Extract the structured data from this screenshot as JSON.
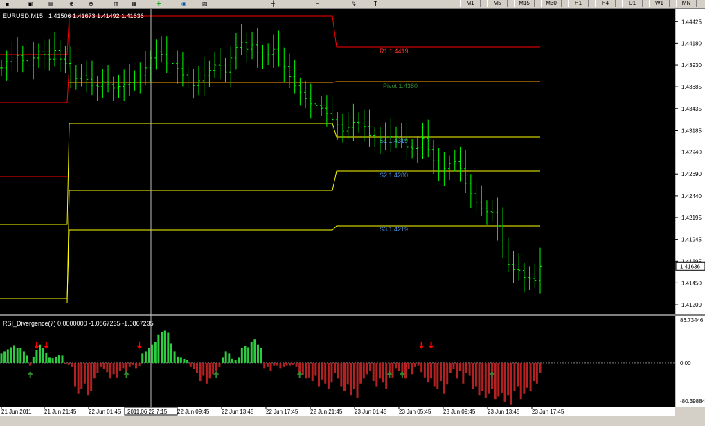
{
  "toolbar": {
    "timeframes": [
      "M1",
      "M5",
      "M15",
      "M30",
      "H1",
      "H4",
      "D1",
      "W1",
      "MN"
    ],
    "icons": [
      "new-chart-icon",
      "profiles-icon",
      "market-watch-icon",
      "navigator-icon",
      "terminal-icon",
      "zoom-in-icon",
      "zoom-out-icon",
      "tile-icon",
      "add-indicator-icon",
      "periods-icon",
      "template-icon",
      "line-icon",
      "cross-icon",
      "text-icon",
      "arrow-icon"
    ]
  },
  "colors": {
    "background": "#000000",
    "bar": "#00ff00",
    "r1": "#ff0000",
    "pivot": "#ffa500",
    "support": "#ffff00",
    "rsi_up": "#2ecc40",
    "rsi_down": "#b22222",
    "label_r1": "#ff3b30",
    "label_pivot": "#2e8b2e",
    "label_support": "#4a90e2"
  },
  "chart_data": [
    {
      "type": "candlestick",
      "symbol_label": "EURUSD,M15",
      "ohlc_label": "1.41506 1.41673 1.41492 1.41636",
      "current_price": "1.41636",
      "y_ticks": [
        "1.44425",
        "1.44180",
        "1.43930",
        "1.43685",
        "1.43435",
        "1.43185",
        "1.42940",
        "1.42690",
        "1.42440",
        "1.42195",
        "1.41945",
        "1.41695",
        "1.41450",
        "1.41200"
      ],
      "ylim": [
        1.4109,
        1.4453
      ],
      "x_ticks": [
        "21 Jun 2011",
        "21 Jun 21:45",
        "22 Jun 01:45",
        "22 Jun 05:45",
        "22 Jun 09:45",
        "22 Jun 13:45",
        "22 Jun 17:45",
        "22 Jun 21:45",
        "23 Jun 01:45",
        "23 Jun 05:45",
        "23 Jun 09:45",
        "23 Jun 13:45",
        "23 Jun 17:45"
      ],
      "crosshair_label": "2011.06.22 7:15",
      "levels": [
        {
          "name": "R1",
          "label": "R1 1.4419",
          "value": 1.4419
        },
        {
          "name": "Pivot",
          "label": "Pivot 1.4380",
          "value": 1.438
        },
        {
          "name": "S1",
          "label": "S1 1.4319",
          "value": 1.4319
        },
        {
          "name": "S2",
          "label": "S2 1.4280",
          "value": 1.428
        },
        {
          "name": "S3",
          "label": "S3 1.4219",
          "value": 1.4219
        }
      ],
      "close_path": [
        1.439,
        1.4397,
        1.4402,
        1.4404,
        1.4398,
        1.4392,
        1.4401,
        1.4409,
        1.4405,
        1.44,
        1.441,
        1.44,
        1.4395,
        1.4384,
        1.4378,
        1.4381,
        1.4377,
        1.437,
        1.4369,
        1.4374,
        1.4371,
        1.4367,
        1.4369,
        1.4371,
        1.4373,
        1.4376,
        1.4381,
        1.439,
        1.4401,
        1.4409,
        1.4405,
        1.4399,
        1.4395,
        1.4389,
        1.4382,
        1.4376,
        1.437,
        1.4375,
        1.4381,
        1.4387,
        1.4393,
        1.4392,
        1.4385,
        1.4401,
        1.4413,
        1.4419,
        1.4411,
        1.4416,
        1.4407,
        1.4402,
        1.4405,
        1.4411,
        1.4402,
        1.4391,
        1.438,
        1.437,
        1.4362,
        1.4355,
        1.4349,
        1.4347,
        1.4344,
        1.4338,
        1.4331,
        1.4325,
        1.4318,
        1.4322,
        1.4328,
        1.4327,
        1.4323,
        1.4313,
        1.4309,
        1.4307,
        1.4311,
        1.4312,
        1.4312,
        1.4308,
        1.43,
        1.4298,
        1.4299,
        1.431,
        1.4297,
        1.4284,
        1.4272,
        1.4275,
        1.4281,
        1.4283,
        1.4275,
        1.4258,
        1.4247,
        1.4237,
        1.423,
        1.4226,
        1.4225,
        1.421,
        1.4186,
        1.4166,
        1.416,
        1.4159,
        1.4151,
        1.415,
        1.4148,
        1.4164
      ],
      "right_edge_value": 1.4164
    },
    {
      "type": "histogram",
      "indicator_label": "RSI_Divergence(7) 0.0000000 -1.0867235 -1.0867235",
      "y_ticks": [
        "86.73446",
        "0.00",
        "-80.39884"
      ],
      "ylim": [
        -80.39884,
        86.73446
      ],
      "values": [
        18,
        22,
        26,
        30,
        34,
        29,
        28,
        22,
        14,
        -5,
        12,
        25,
        35,
        28,
        20,
        10,
        9,
        12,
        15,
        14,
        -2,
        -4,
        -8,
        -45,
        -60,
        -50,
        -40,
        -62,
        -55,
        -30,
        -20,
        -8,
        -12,
        -18,
        -30,
        -22,
        -28,
        -15,
        -10,
        -20,
        -8,
        -4,
        -10,
        -6,
        18,
        22,
        28,
        35,
        40,
        55,
        60,
        62,
        58,
        38,
        22,
        12,
        10,
        8,
        6,
        -8,
        -12,
        -20,
        -35,
        -25,
        -40,
        -30,
        -22,
        -15,
        -8,
        10,
        22,
        18,
        8,
        6,
        10,
        28,
        32,
        30,
        40,
        45,
        35,
        28,
        -10,
        -8,
        -15,
        -5,
        -5,
        -10,
        -8,
        -5,
        -5,
        -4,
        -8,
        -20,
        -24,
        -30,
        -28,
        -35,
        -25,
        -45,
        -32,
        -40,
        -50,
        -38,
        -20,
        -30,
        -45,
        -55,
        -42,
        -62,
        -50,
        -68,
        -40,
        -30,
        -22,
        -15,
        -35,
        -45,
        -30,
        -38,
        -50,
        -18,
        -28,
        -10,
        -15,
        -25,
        -30,
        -12,
        -22,
        -8,
        -5,
        -18,
        -28,
        -38,
        -30,
        -45,
        -50,
        -35,
        -60,
        -42,
        -20,
        -12,
        -30,
        -15,
        -40,
        -20,
        -25,
        -50,
        -45,
        -62,
        -55,
        -68,
        -60,
        -50,
        -70,
        -65,
        -58,
        -75,
        -62,
        -80,
        -55,
        -45,
        -70,
        -60,
        -48,
        -55,
        -35,
        -40,
        -20
      ],
      "up_arrow_indices": [
        9,
        39,
        67,
        93,
        121,
        125,
        153
      ],
      "down_arrow_indices": [
        11,
        14,
        43,
        131,
        134
      ]
    }
  ]
}
